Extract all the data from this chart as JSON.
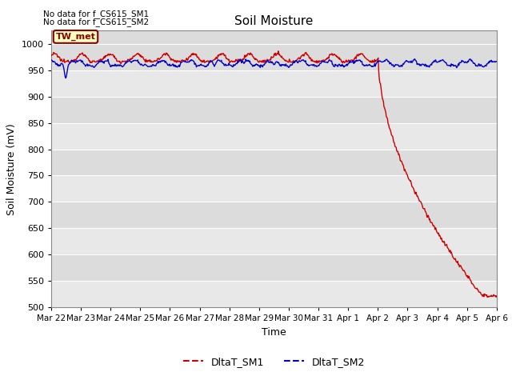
{
  "title": "Soil Moisture",
  "xlabel": "Time",
  "ylabel": "Soil Moisture (mV)",
  "ylim": [
    500,
    1025
  ],
  "yticks": [
    500,
    550,
    600,
    650,
    700,
    750,
    800,
    850,
    900,
    950,
    1000
  ],
  "bg_color": "#dcdcdc",
  "fig_color": "#ffffff",
  "no_data_text": [
    "No data for f_CS615_SM1",
    "No data for f_CS615_SM2"
  ],
  "legend_label_box": "TW_met",
  "legend_box_color": "#ffffc0",
  "legend_box_border": "#8b0000",
  "line1_color": "#cc0000",
  "line2_color": "#0000cc",
  "line1_label": "DltaT_SM1",
  "line2_label": "DltaT_SM2",
  "x_tick_labels": [
    "Mar 22",
    "Mar 23",
    "Mar 24",
    "Mar 25",
    "Mar 26",
    "Mar 27",
    "Mar 28",
    "Mar 29",
    "Mar 30",
    "Mar 31",
    "Apr 1",
    "Apr 2",
    "Apr 3",
    "Apr 4",
    "Apr 5",
    "Apr 6"
  ],
  "x_tick_positions": [
    0,
    1,
    2,
    3,
    4,
    5,
    6,
    7,
    8,
    9,
    10,
    11,
    12,
    13,
    14,
    15
  ],
  "grid_color": "#c0c0c0",
  "stripe_color": "#e8e8e8"
}
